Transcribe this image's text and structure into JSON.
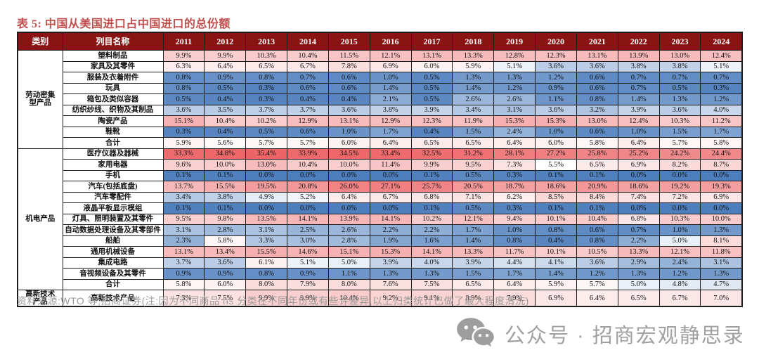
{
  "title": {
    "text": "表 5: 中国从美国进口占中国进口的总份额"
  },
  "table": {
    "col_headers": {
      "category": "类别",
      "item": "列目名称"
    },
    "years": [
      "2011",
      "2012",
      "2013",
      "2014",
      "2015",
      "2016",
      "2017",
      "2018",
      "2019",
      "2020",
      "2021",
      "2022",
      "2023",
      "2024"
    ],
    "categories": [
      {
        "name_lines": [
          "劳动密集",
          "型产品"
        ],
        "rows": [
          {
            "label": "塑料制品",
            "values": [
              9.9,
              9.9,
              10.3,
              10.4,
              11.5,
              12.1,
              13.1,
              13.3,
              12.8,
              12.3,
              13.1,
              13.9,
              13.0,
              12.4
            ]
          },
          {
            "label": "家具及其零件",
            "values": [
              6.3,
              6.4,
              6.5,
              6.7,
              7.8,
              6.9,
              6.0,
              5.9,
              5.1,
              3.6,
              3.6,
              3.8,
              3.8,
              5.1
            ]
          },
          {
            "label": "服装及衣着附件",
            "values": [
              0.8,
              0.9,
              0.8,
              0.7,
              0.6,
              1.0,
              0.5,
              1.3,
              1.3,
              1.2,
              0.6,
              0.7,
              0.7,
              0.7
            ]
          },
          {
            "label": "玩具",
            "values": [
              0.8,
              0.5,
              0.3,
              0.6,
              0.6,
              1.4,
              0.5,
              1.4,
              1.2,
              0.9,
              0.6,
              0.7,
              0.5,
              0.3
            ]
          },
          {
            "label": "箱包及类似容器",
            "values": [
              0.5,
              0.4,
              0.3,
              0.4,
              0.4,
              2.1,
              0.5,
              2.6,
              2.6,
              1.1,
              0.8,
              1.4,
              1.3,
              1.2
            ]
          },
          {
            "label": "纺织纱线、织物及其制品",
            "values": [
              3.6,
              3.5,
              3.7,
              3.7,
              3.6,
              3.8,
              3.9,
              3.4,
              3.1,
              3.6,
              3.2,
              3.9,
              3.6,
              4.0
            ]
          },
          {
            "label": "陶瓷产品",
            "values": [
              15.1,
              10.4,
              10.2,
              12.9,
              13.1,
              12.9,
              12.3,
              11.9,
              15.3,
              15.3,
              13.0,
              12.4,
              10.3,
              11.2
            ]
          },
          {
            "label": "鞋靴",
            "values": [
              0.3,
              0.4,
              0.5,
              0.6,
              1.0,
              1.7,
              0.4,
              1.5,
              2.4,
              1.0,
              0.6,
              1.0,
              1.5,
              1.7
            ]
          },
          {
            "label": "合计",
            "values": [
              5.9,
              5.6,
              5.7,
              5.7,
              6.0,
              6.4,
              6.5,
              6.5,
              6.4,
              6.0,
              5.8,
              6.4,
              5.7,
              5.8
            ]
          }
        ]
      },
      {
        "name_lines": [
          "机电产品"
        ],
        "rows": [
          {
            "label": "医疗仪器及器械",
            "values": [
              33.3,
              34.8,
              35.4,
              33.9,
              34.5,
              33.4,
              32.5,
              31.2,
              28.1,
              27.2,
              25.8,
              25.2,
              24.2,
              24.4
            ]
          },
          {
            "label": "家用电器",
            "values": [
              9.6,
              10.0,
              13.0,
              10.4,
              10.0,
              11.4,
              9.9,
              9.5,
              7.3,
              5.5,
              6.5,
              6.9,
              8.2,
              8.7
            ]
          },
          {
            "label": "手机",
            "values": [
              0.1,
              0.1,
              0.0,
              0.0,
              0.0,
              0.0,
              0.1,
              0.5,
              0.3,
              0.1,
              0.1,
              0.0,
              0.0,
              0.0
            ]
          },
          {
            "label": "汽车(包括底盘)",
            "values": [
              13.7,
              15.5,
              19.5,
              20.8,
              26.0,
              27.1,
              25.7,
              20.5,
              18.7,
              18.6,
              20.9,
              18.6,
              19.2,
              19.3
            ]
          },
          {
            "label": "汽车零配件",
            "values": [
              3.4,
              3.8,
              4.9,
              5.2,
              6.4,
              6.7,
              6.8,
              7.1,
              6.2,
              8.5,
              8.4,
              7.4,
              7.2,
              6.9
            ]
          },
          {
            "label": "液晶平板显示模组",
            "values": [
              0.1,
              0.1,
              0.0,
              0.0,
              0.0,
              0.0,
              0.1,
              0.5,
              0.3,
              0.1,
              0.1,
              0.0,
              0.0,
              0.0
            ]
          },
          {
            "label": "灯具、照明装置及其零件",
            "values": [
              9.5,
              9.8,
              13.5,
              14.1,
              13.9,
              14.1,
              10.2,
              12.1,
              9.4,
              10.1,
              10.4,
              6.8,
              10.3,
              10.0
            ]
          },
          {
            "label": "自动数据处理设备及其零部件",
            "values": [
              3.1,
              2.8,
              3.1,
              2.5,
              2.6,
              2.2,
              2.2,
              1.7,
              1.0,
              0.8,
              0.6,
              0.7,
              1.0,
              1.3
            ]
          },
          {
            "label": "船舶",
            "values": [
              2.3,
              5.8,
              3.3,
              3.0,
              2.8,
              1.9,
              1.6,
              1.4,
              0.8,
              0.4,
              0.8,
              2.2,
              5.0,
              8.1
            ]
          },
          {
            "label": "通用机械设备",
            "values": [
              13.1,
              13.4,
              15.5,
              14.6,
              15.1,
              15.3,
              14.1,
              13.3,
              11.7,
              10.1,
              10.5,
              13.3,
              12.1,
              11.8
            ]
          },
          {
            "label": "集成电路",
            "values": [
              3.7,
              3.6,
              6.1,
              5.1,
              5.0,
              3.9,
              4.0,
              3.9,
              4.4,
              4.1,
              3.6,
              2.9,
              2.4,
              3.1
            ]
          },
          {
            "label": "音视频设备及其零件",
            "values": [
              0.9,
              0.9,
              0.8,
              0.9,
              1.1,
              1.3,
              1.3,
              1.5,
              1.7,
              1.4,
              1.2,
              1.3,
              1.2,
              1.3
            ]
          },
          {
            "label": "合计",
            "values": [
              5.8,
              6.0,
              8.0,
              7.9,
              8.0,
              7.6,
              7.5,
              6.5,
              6.4,
              5.9,
              5.7,
              5.0,
              4.8,
              4.7
            ]
          }
        ]
      },
      {
        "name_lines": [
          "高新技术",
          "产品"
        ],
        "tall": true,
        "rows": [
          {
            "label": "高新技术产品",
            "values": [
              7.3,
              7.5,
              9.9,
              9.9,
              10.4,
              9.2,
              9.1,
              8.9,
              7.9,
              6.9,
              6.4,
              6.5,
              6.7,
              7.0
            ]
          }
        ]
      }
    ]
  },
  "heatmap": {
    "low_color": "#4d7ebd",
    "mid_color": "#ffffff",
    "high_color": "#ed6466",
    "mid_value": 5.5,
    "max_value": 35.4
  },
  "colors": {
    "header_bg": "#8a1414",
    "header_text": "#ffffff",
    "title_text": "#bf4f4c",
    "border": "#1c1c1c",
    "footer_text": "#9b9b9b",
    "watermark": "#a0a0a0"
  },
  "footer": {
    "source": "资料来源:WTO 等,招商证券(注:因为不同商品 hs 分类在不同年份或有些许差异,以上归类统计已做了最大程度清洗)"
  },
  "watermark": {
    "icon": "wechat-icon",
    "text": "公众号 · 招商宏观静思录"
  }
}
